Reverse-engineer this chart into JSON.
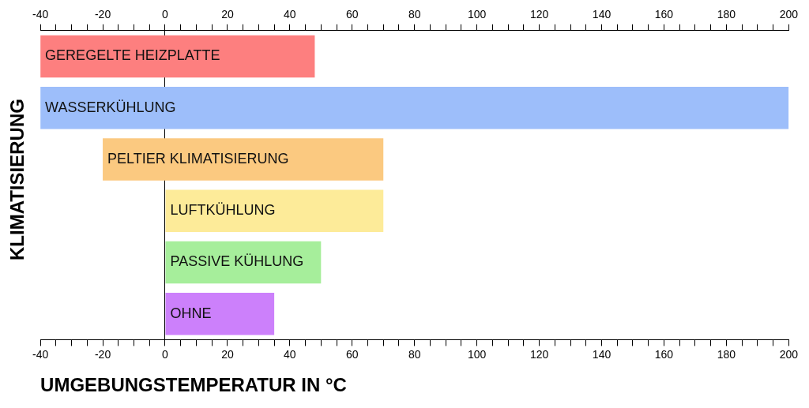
{
  "chart_data": {
    "type": "bar",
    "orientation": "horizontal",
    "xlabel": "UMGEBUNGSTEMPERATUR IN °C",
    "ylabel": "KLIMATISIERUNG",
    "categories": [
      "GEREGELTE HEIZPLATTE",
      "WASSERKÜHLUNG",
      "PELTIER KLIMATISIERUNG",
      "LUFTKÜHLUNG",
      "PASSIVE KÜHLUNG",
      "OHNE"
    ],
    "base": [
      -40,
      -40,
      -20,
      0,
      0,
      0
    ],
    "values": [
      88,
      240,
      90,
      70,
      50,
      35
    ],
    "colors": [
      "#fd7f7f",
      "#9dbefa",
      "#fbc980",
      "#fdeb99",
      "#a6ee9b",
      "#cc80fb"
    ],
    "xlim": [
      -40,
      200
    ],
    "xticks": [
      -40,
      {
        "value": -35,
        "label": null
      },
      {
        "value": -30,
        "label": null
      },
      {
        "value": -25,
        "label": null
      },
      -20,
      {
        "value": -15,
        "label": null
      },
      {
        "value": -10,
        "label": null
      },
      {
        "value": -5,
        "label": null
      },
      0,
      {
        "value": 5,
        "label": null
      },
      {
        "value": 10,
        "label": null
      },
      {
        "value": 15,
        "label": null
      },
      20,
      {
        "value": 25,
        "label": null
      },
      {
        "value": 30,
        "label": null
      },
      {
        "value": 35,
        "label": null
      },
      40,
      {
        "value": 45,
        "label": null
      },
      {
        "value": 50,
        "label": null
      },
      {
        "value": 55,
        "label": null
      },
      60,
      {
        "value": 65,
        "label": null
      },
      {
        "value": 70,
        "label": null
      },
      {
        "value": 75,
        "label": null
      },
      80,
      {
        "value": 85,
        "label": null
      },
      {
        "value": 90,
        "label": null
      },
      {
        "value": 95,
        "label": null
      },
      100,
      {
        "value": 105,
        "label": null
      },
      {
        "value": 110,
        "label": null
      },
      {
        "value": 115,
        "label": null
      },
      120,
      {
        "value": 125,
        "label": null
      },
      {
        "value": 130,
        "label": null
      },
      {
        "value": 135,
        "label": null
      },
      140,
      {
        "value": 145,
        "label": null
      },
      {
        "value": 150,
        "label": null
      },
      {
        "value": 155,
        "label": null
      },
      160,
      {
        "value": 165,
        "label": null
      },
      {
        "value": 170,
        "label": null
      },
      {
        "value": 175,
        "label": null
      },
      180,
      {
        "value": 185,
        "label": null
      },
      {
        "value": 190,
        "label": null
      },
      {
        "value": 195,
        "label": null
      },
      200
    ],
    "x2lim": [
      -40,
      200
    ],
    "x2ticks": [
      -40,
      {
        "value": -35,
        "label": null
      },
      {
        "value": -30,
        "label": null
      },
      {
        "value": -25,
        "label": null
      },
      -20,
      {
        "value": -15,
        "label": null
      },
      {
        "value": -10,
        "label": null
      },
      {
        "value": -5,
        "label": null
      },
      0,
      {
        "value": 5,
        "label": null
      },
      {
        "value": 10,
        "label": null
      },
      {
        "value": 15,
        "label": null
      },
      20,
      {
        "value": 25,
        "label": null
      },
      {
        "value": 30,
        "label": null
      },
      {
        "value": 35,
        "label": null
      },
      40,
      {
        "value": 45,
        "label": null
      },
      {
        "value": 50,
        "label": null
      },
      {
        "value": 55,
        "label": null
      },
      60,
      {
        "value": 65,
        "label": null
      },
      {
        "value": 70,
        "label": null
      },
      {
        "value": 75,
        "label": null
      },
      80,
      {
        "value": 85,
        "label": null
      },
      {
        "value": 90,
        "label": null
      },
      {
        "value": 95,
        "label": null
      },
      100,
      {
        "value": 105,
        "label": null
      },
      {
        "value": 110,
        "label": null
      },
      {
        "value": 115,
        "label": null
      },
      120,
      {
        "value": 125,
        "label": null
      },
      {
        "value": 130,
        "label": null
      },
      {
        "value": 135,
        "label": null
      },
      140,
      {
        "value": 145,
        "label": null
      },
      {
        "value": 150,
        "label": null
      },
      {
        "value": 155,
        "label": null
      },
      160,
      {
        "value": 165,
        "label": null
      },
      {
        "value": 170,
        "label": null
      },
      {
        "value": 175,
        "label": null
      },
      180,
      {
        "value": 185,
        "label": null
      },
      {
        "value": 190,
        "label": null
      },
      {
        "value": 195,
        "label": null
      },
      200
    ],
    "grid": false,
    "legend": false
  }
}
